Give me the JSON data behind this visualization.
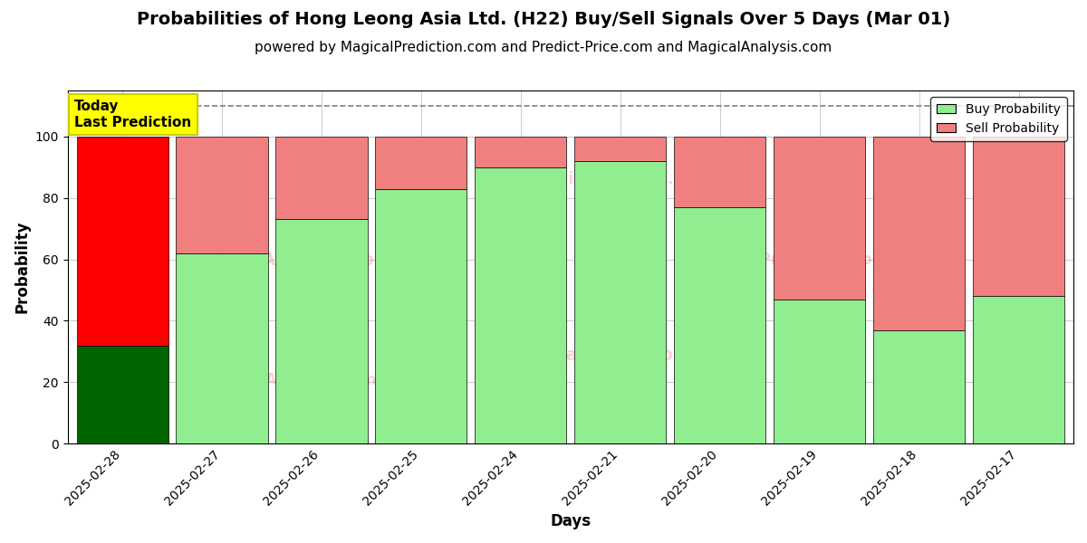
{
  "title": "Probabilities of Hong Leong Asia Ltd. (H22) Buy/Sell Signals Over 5 Days (Mar 01)",
  "subtitle": "powered by MagicalPrediction.com and Predict-Price.com and MagicalAnalysis.com",
  "xlabel": "Days",
  "ylabel": "Probability",
  "categories": [
    "2025-02-28",
    "2025-02-27",
    "2025-02-26",
    "2025-02-25",
    "2025-02-24",
    "2025-02-21",
    "2025-02-20",
    "2025-02-19",
    "2025-02-18",
    "2025-02-17"
  ],
  "buy_values": [
    32,
    62,
    73,
    83,
    90,
    92,
    77,
    47,
    37,
    48
  ],
  "sell_values": [
    68,
    38,
    27,
    17,
    10,
    8,
    23,
    53,
    63,
    52
  ],
  "buy_color_first": "#006400",
  "sell_color_first": "#FF0000",
  "buy_color_rest": "#90EE90",
  "sell_color_rest": "#F08080",
  "bar_edge_color": "#000000",
  "ylim": [
    0,
    115
  ],
  "yticks": [
    0,
    20,
    40,
    60,
    80,
    100
  ],
  "dashed_line_y": 110,
  "legend_buy": "Buy Probability",
  "legend_sell": "Sell Probability",
  "annotation_text": "Today\nLast Prediction",
  "annotation_bg": "#FFFF00",
  "annotation_edge": "#cccc00",
  "background_color": "#ffffff",
  "grid_color": "#cccccc",
  "title_fontsize": 14,
  "subtitle_fontsize": 11,
  "axis_label_fontsize": 12,
  "tick_fontsize": 10,
  "bar_width": 0.92
}
